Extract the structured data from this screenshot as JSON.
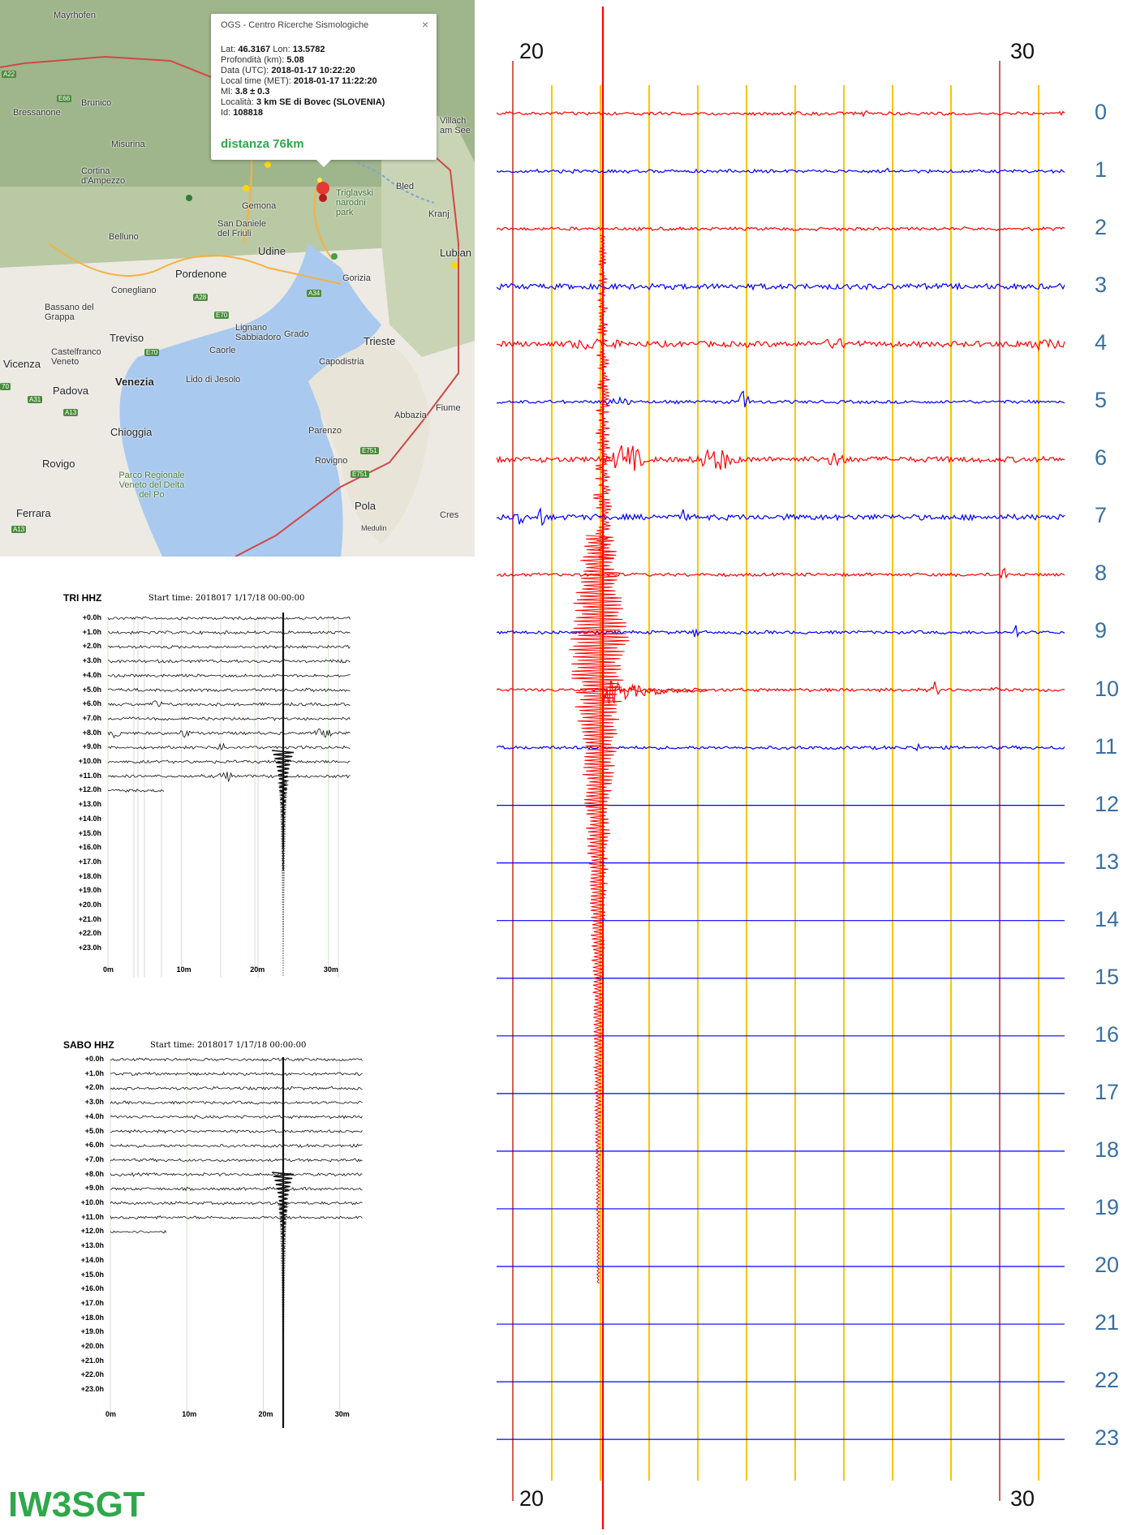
{
  "map": {
    "popup": {
      "title": "OGS - Centro Ricerche Sismologiche",
      "close": "×",
      "rows": [
        {
          "label": "Lat: ",
          "value": "46.3167",
          "label2": " Lon: ",
          "value2": "13.5782"
        },
        {
          "label": "Profondità (km): ",
          "value": "5.08"
        },
        {
          "label": "Data (UTC): ",
          "value": "2018-01-17 10:22:20"
        },
        {
          "label": "Local time (MET): ",
          "value": "2018-01-17 11:22:20"
        },
        {
          "label": "Ml: ",
          "value": "3.8 ± 0.3"
        },
        {
          "label": "Località: ",
          "value": "3 km SE di Bovec (SLOVENIA)"
        },
        {
          "label": "Id: ",
          "value": "108818"
        }
      ],
      "distance": "distanza 76km"
    },
    "places": [
      "Mayrhofen",
      "Brunico",
      "Bressanone",
      "Misurina",
      "Cortina d'Ampezzo",
      "Belluno",
      "Pordenone",
      "Conegliano",
      "Bassano del Grappa",
      "Treviso",
      "Castelfranco Veneto",
      "Vicenza",
      "Padova",
      "Venezia",
      "Lido di Jesolo",
      "Caorle",
      "Chioggia",
      "Rovigo",
      "Ferrara",
      "Parco Regionale Veneto del Delta del Po",
      "Udine",
      "Gemona",
      "San Daniele del Friuli",
      "Gorizia",
      "Trieste",
      "Capodistria",
      "Parenzo",
      "Rovigno",
      "Pola",
      "Fiume",
      "Abbazia",
      "Lignano Sabbiadoro",
      "Grado",
      "Bled",
      "Kranj",
      "Lubian",
      "Triglavski narodni park",
      "Cres",
      "Medulin",
      "Villach am See"
    ],
    "roads": [
      "A22",
      "E66",
      "A28",
      "E70",
      "A34",
      "E70",
      "A31",
      "A13",
      "E751",
      "E751",
      "A13",
      "70"
    ]
  },
  "heli_tri": {
    "station": "TRI HHZ",
    "start": "Start time: 2018017   1/17/18 00:00:00",
    "hours": [
      "+0.0h",
      "+1.0h",
      "+2.0h",
      "+3.0h",
      "+4.0h",
      "+5.0h",
      "+6.0h",
      "+7.0h",
      "+8.0h",
      "+9.0h",
      "+10.0h",
      "+11.0h",
      "+12.0h",
      "+13.0h",
      "+14.0h",
      "+15.0h",
      "+16.0h",
      "+17.0h",
      "+18.0h",
      "+19.0h",
      "+20.0h",
      "+21.0h",
      "+22.0h",
      "+23.0h"
    ],
    "minutes": [
      "0m",
      "10m",
      "20m",
      "30m"
    ]
  },
  "heli_sabo": {
    "station": "SABO HHZ",
    "start": "Start time: 2018017   1/17/18 00:00:00",
    "hours": [
      "+0.0h",
      "+1.0h",
      "+2.0h",
      "+3.0h",
      "+4.0h",
      "+5.0h",
      "+6.0h",
      "+7.0h",
      "+8.0h",
      "+9.0h",
      "+10.0h",
      "+11.0h",
      "+12.0h",
      "+13.0h",
      "+14.0h",
      "+15.0h",
      "+16.0h",
      "+17.0h",
      "+18.0h",
      "+19.0h",
      "+20.0h",
      "+21.0h",
      "+22.0h",
      "+23.0h"
    ],
    "minutes": [
      "0m",
      "10m",
      "20m",
      "30m"
    ]
  },
  "seismogram": {
    "minute_labels_top": [
      "20",
      "30"
    ],
    "minute_labels_bottom": [
      "20",
      "30"
    ],
    "hours": [
      "0",
      "1",
      "2",
      "3",
      "4",
      "5",
      "6",
      "7",
      "8",
      "9",
      "10",
      "11",
      "12",
      "13",
      "14",
      "15",
      "16",
      "17",
      "18",
      "19",
      "20",
      "21",
      "22",
      "23"
    ],
    "colors": {
      "red": "#ff0000",
      "blue": "#0000ff",
      "gridline": "#ffc400",
      "major": "#cc2222",
      "hour_label": "#3a6fa0"
    }
  },
  "callsign": "IW3SGT"
}
